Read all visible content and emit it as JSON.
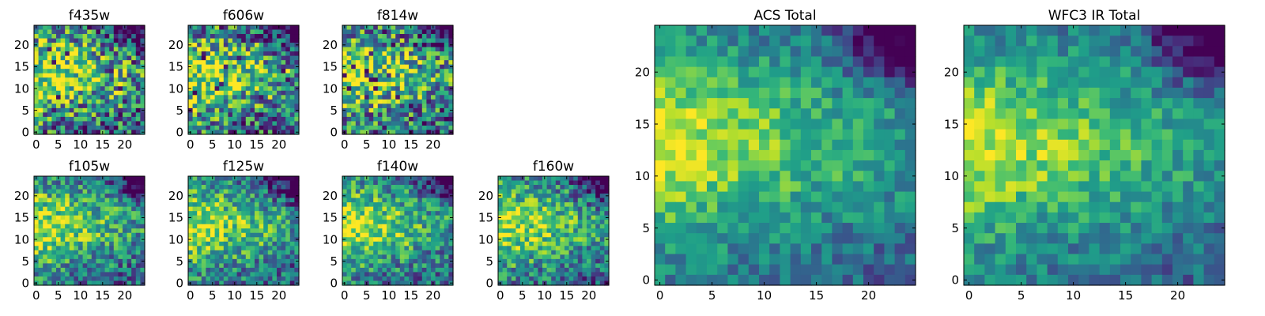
{
  "colormap": "viridis",
  "chart_data": [
    {
      "type": "heatmap",
      "title": "f435w",
      "grid_size": 25,
      "xlim": [
        0,
        24
      ],
      "ylim": [
        0,
        24
      ],
      "xticks": [
        0,
        5,
        10,
        15,
        20
      ],
      "yticks": [
        0,
        5,
        10,
        15,
        20
      ],
      "noise": "high"
    },
    {
      "type": "heatmap",
      "title": "f606w",
      "grid_size": 25,
      "xlim": [
        0,
        24
      ],
      "ylim": [
        0,
        24
      ],
      "xticks": [
        0,
        5,
        10,
        15,
        20
      ],
      "yticks": [
        0,
        5,
        10,
        15,
        20
      ],
      "noise": "high"
    },
    {
      "type": "heatmap",
      "title": "f814w",
      "grid_size": 25,
      "xlim": [
        0,
        24
      ],
      "ylim": [
        0,
        24
      ],
      "xticks": [
        0,
        5,
        10,
        15,
        20
      ],
      "yticks": [
        0,
        5,
        10,
        15,
        20
      ],
      "noise": "high"
    },
    {
      "type": "heatmap",
      "title": "f105w",
      "grid_size": 25,
      "xlim": [
        0,
        24
      ],
      "ylim": [
        0,
        24
      ],
      "xticks": [
        0,
        5,
        10,
        15,
        20
      ],
      "yticks": [
        0,
        5,
        10,
        15,
        20
      ],
      "noise": "medium"
    },
    {
      "type": "heatmap",
      "title": "f125w",
      "grid_size": 25,
      "xlim": [
        0,
        24
      ],
      "ylim": [
        0,
        24
      ],
      "xticks": [
        0,
        5,
        10,
        15,
        20
      ],
      "yticks": [
        0,
        5,
        10,
        15,
        20
      ],
      "noise": "medium"
    },
    {
      "type": "heatmap",
      "title": "f140w",
      "grid_size": 25,
      "xlim": [
        0,
        24
      ],
      "ylim": [
        0,
        24
      ],
      "xticks": [
        0,
        5,
        10,
        15,
        20
      ],
      "yticks": [
        0,
        5,
        10,
        15,
        20
      ],
      "noise": "medium"
    },
    {
      "type": "heatmap",
      "title": "f160w",
      "grid_size": 25,
      "xlim": [
        0,
        24
      ],
      "ylim": [
        0,
        24
      ],
      "xticks": [
        0,
        5,
        10,
        15,
        20
      ],
      "yticks": [
        0,
        5,
        10,
        15,
        20
      ],
      "noise": "medium"
    },
    {
      "type": "heatmap",
      "title": "ACS Total",
      "grid_size": 25,
      "xlim": [
        0,
        24
      ],
      "ylim": [
        0,
        24
      ],
      "xticks": [
        0,
        5,
        10,
        15,
        20
      ],
      "yticks": [
        0,
        5,
        10,
        15,
        20
      ],
      "noise": "low"
    },
    {
      "type": "heatmap",
      "title": "WFC3 IR Total",
      "grid_size": 25,
      "xlim": [
        0,
        24
      ],
      "ylim": [
        0,
        24
      ],
      "xticks": [
        0,
        5,
        10,
        15,
        20
      ],
      "yticks": [
        0,
        5,
        10,
        15,
        20
      ],
      "noise": "low"
    }
  ]
}
